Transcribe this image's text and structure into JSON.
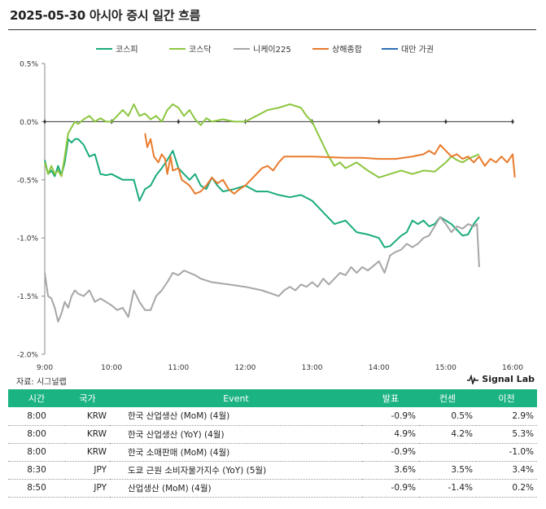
{
  "header": {
    "title": "2025-05-30 아시아 증시 일간 흐름"
  },
  "footer": {
    "source": "자료: 시그널랩",
    "brand": "Signal Lab"
  },
  "colors": {
    "kospi": "#1aab7d",
    "kosdaq": "#8cc63f",
    "nikkei": "#a6a6a6",
    "shanghai": "#e97b2c",
    "taiwan": "#2e6fb5"
  },
  "chart_data": {
    "type": "line",
    "title": "",
    "xlabel": "",
    "ylabel": "",
    "x_ticks": [
      "9:00",
      "10:00",
      "11:00",
      "12:00",
      "13:00",
      "14:00",
      "15:00",
      "16:00"
    ],
    "y_ticks": [
      "0.5%",
      "0.0%",
      "-0.5%",
      "-1.0%",
      "-1.5%",
      "-2.0%"
    ],
    "xlim": [
      "9:00",
      "16:00"
    ],
    "ylim": [
      -2.0,
      0.5
    ],
    "grid": false,
    "legend_position": "top",
    "series": [
      {
        "name": "코스피",
        "color": "#1aab7d",
        "points": [
          [
            "9:00",
            -0.33
          ],
          [
            "9:03",
            -0.45
          ],
          [
            "9:06",
            -0.42
          ],
          [
            "9:09",
            -0.47
          ],
          [
            "9:12",
            -0.38
          ],
          [
            "9:15",
            -0.46
          ],
          [
            "9:18",
            -0.35
          ],
          [
            "9:21",
            -0.15
          ],
          [
            "9:24",
            -0.18
          ],
          [
            "9:27",
            -0.15
          ],
          [
            "9:30",
            -0.15
          ],
          [
            "9:35",
            -0.2
          ],
          [
            "9:40",
            -0.3
          ],
          [
            "9:45",
            -0.28
          ],
          [
            "9:50",
            -0.45
          ],
          [
            "9:55",
            -0.46
          ],
          [
            "10:00",
            -0.45
          ],
          [
            "10:10",
            -0.5
          ],
          [
            "10:20",
            -0.5
          ],
          [
            "10:25",
            -0.68
          ],
          [
            "10:30",
            -0.58
          ],
          [
            "10:35",
            -0.55
          ],
          [
            "10:40",
            -0.46
          ],
          [
            "10:45",
            -0.4
          ],
          [
            "10:50",
            -0.33
          ],
          [
            "10:55",
            -0.25
          ],
          [
            "11:00",
            -0.4
          ],
          [
            "11:05",
            -0.45
          ],
          [
            "11:10",
            -0.5
          ],
          [
            "11:15",
            -0.45
          ],
          [
            "11:20",
            -0.55
          ],
          [
            "11:25",
            -0.58
          ],
          [
            "11:30",
            -0.48
          ],
          [
            "11:35",
            -0.55
          ],
          [
            "11:40",
            -0.6
          ],
          [
            "11:50",
            -0.58
          ],
          [
            "12:00",
            -0.55
          ],
          [
            "12:10",
            -0.6
          ],
          [
            "12:20",
            -0.6
          ],
          [
            "12:30",
            -0.63
          ],
          [
            "12:40",
            -0.65
          ],
          [
            "12:50",
            -0.63
          ],
          [
            "13:00",
            -0.68
          ],
          [
            "13:10",
            -0.78
          ],
          [
            "13:20",
            -0.88
          ],
          [
            "13:30",
            -0.85
          ],
          [
            "13:40",
            -0.95
          ],
          [
            "13:50",
            -0.97
          ],
          [
            "14:00",
            -1.0
          ],
          [
            "14:05",
            -1.08
          ],
          [
            "14:10",
            -1.07
          ],
          [
            "14:20",
            -0.98
          ],
          [
            "14:25",
            -0.95
          ],
          [
            "14:30",
            -0.85
          ],
          [
            "14:35",
            -0.88
          ],
          [
            "14:40",
            -0.85
          ],
          [
            "14:45",
            -0.9
          ],
          [
            "14:50",
            -0.88
          ],
          [
            "14:55",
            -0.82
          ],
          [
            "15:00",
            -0.85
          ],
          [
            "15:05",
            -0.88
          ],
          [
            "15:10",
            -0.93
          ],
          [
            "15:15",
            -0.98
          ],
          [
            "15:20",
            -0.97
          ],
          [
            "15:25",
            -0.88
          ],
          [
            "15:30",
            -0.82
          ]
        ]
      },
      {
        "name": "코스닥",
        "color": "#8cc63f",
        "points": [
          [
            "9:00",
            -0.35
          ],
          [
            "9:03",
            -0.45
          ],
          [
            "9:06",
            -0.38
          ],
          [
            "9:09",
            -0.45
          ],
          [
            "9:12",
            -0.42
          ],
          [
            "9:15",
            -0.47
          ],
          [
            "9:18",
            -0.3
          ],
          [
            "9:21",
            -0.1
          ],
          [
            "9:24",
            -0.05
          ],
          [
            "9:27",
            0.0
          ],
          [
            "9:30",
            -0.02
          ],
          [
            "9:35",
            0.02
          ],
          [
            "9:40",
            0.05
          ],
          [
            "9:45",
            0.0
          ],
          [
            "9:50",
            0.03
          ],
          [
            "9:55",
            0.0
          ],
          [
            "10:00",
            0.0
          ],
          [
            "10:05",
            0.05
          ],
          [
            "10:10",
            0.1
          ],
          [
            "10:15",
            0.05
          ],
          [
            "10:20",
            0.15
          ],
          [
            "10:25",
            0.05
          ],
          [
            "10:30",
            0.07
          ],
          [
            "10:35",
            0.02
          ],
          [
            "10:40",
            0.05
          ],
          [
            "10:45",
            0.0
          ],
          [
            "10:50",
            0.1
          ],
          [
            "10:55",
            0.15
          ],
          [
            "11:00",
            0.12
          ],
          [
            "11:05",
            0.05
          ],
          [
            "11:10",
            0.1
          ],
          [
            "11:15",
            0.02
          ],
          [
            "11:20",
            -0.03
          ],
          [
            "11:25",
            0.03
          ],
          [
            "11:30",
            0.0
          ],
          [
            "11:40",
            0.02
          ],
          [
            "11:50",
            0.0
          ],
          [
            "12:00",
            0.0
          ],
          [
            "12:10",
            0.05
          ],
          [
            "12:20",
            0.1
          ],
          [
            "12:30",
            0.12
          ],
          [
            "12:40",
            0.15
          ],
          [
            "12:50",
            0.12
          ],
          [
            "12:55",
            0.05
          ],
          [
            "13:00",
            0.0
          ],
          [
            "13:05",
            -0.1
          ],
          [
            "13:10",
            -0.2
          ],
          [
            "13:15",
            -0.3
          ],
          [
            "13:20",
            -0.38
          ],
          [
            "13:25",
            -0.35
          ],
          [
            "13:30",
            -0.4
          ],
          [
            "13:40",
            -0.35
          ],
          [
            "13:50",
            -0.42
          ],
          [
            "14:00",
            -0.48
          ],
          [
            "14:10",
            -0.45
          ],
          [
            "14:20",
            -0.42
          ],
          [
            "14:30",
            -0.45
          ],
          [
            "14:40",
            -0.42
          ],
          [
            "14:50",
            -0.43
          ],
          [
            "15:00",
            -0.35
          ],
          [
            "15:05",
            -0.3
          ],
          [
            "15:10",
            -0.33
          ],
          [
            "15:15",
            -0.35
          ],
          [
            "15:20",
            -0.32
          ],
          [
            "15:25",
            -0.3
          ],
          [
            "15:30",
            -0.28
          ]
        ]
      },
      {
        "name": "니케이225",
        "color": "#a6a6a6",
        "points": [
          [
            "9:00",
            -1.3
          ],
          [
            "9:03",
            -1.5
          ],
          [
            "9:06",
            -1.52
          ],
          [
            "9:09",
            -1.6
          ],
          [
            "9:12",
            -1.72
          ],
          [
            "9:15",
            -1.65
          ],
          [
            "9:18",
            -1.55
          ],
          [
            "9:21",
            -1.6
          ],
          [
            "9:24",
            -1.5
          ],
          [
            "9:27",
            -1.45
          ],
          [
            "9:30",
            -1.48
          ],
          [
            "9:35",
            -1.5
          ],
          [
            "9:40",
            -1.45
          ],
          [
            "9:45",
            -1.55
          ],
          [
            "9:50",
            -1.52
          ],
          [
            "9:55",
            -1.55
          ],
          [
            "10:00",
            -1.58
          ],
          [
            "10:05",
            -1.62
          ],
          [
            "10:10",
            -1.6
          ],
          [
            "10:15",
            -1.68
          ],
          [
            "10:20",
            -1.45
          ],
          [
            "10:25",
            -1.55
          ],
          [
            "10:30",
            -1.62
          ],
          [
            "10:35",
            -1.62
          ],
          [
            "10:40",
            -1.5
          ],
          [
            "10:45",
            -1.45
          ],
          [
            "10:50",
            -1.38
          ],
          [
            "10:55",
            -1.3
          ],
          [
            "11:00",
            -1.32
          ],
          [
            "11:05",
            -1.28
          ],
          [
            "11:10",
            -1.3
          ],
          [
            "11:15",
            -1.32
          ],
          [
            "11:20",
            -1.35
          ],
          [
            "11:30",
            -1.38
          ],
          [
            "11:45",
            -1.4
          ],
          [
            "12:00",
            -1.42
          ],
          [
            "12:15",
            -1.45
          ],
          [
            "12:30",
            -1.5
          ],
          [
            "12:35",
            -1.45
          ],
          [
            "12:40",
            -1.42
          ],
          [
            "12:45",
            -1.45
          ],
          [
            "12:50",
            -1.4
          ],
          [
            "12:55",
            -1.42
          ],
          [
            "13:00",
            -1.38
          ],
          [
            "13:05",
            -1.42
          ],
          [
            "13:10",
            -1.35
          ],
          [
            "13:15",
            -1.4
          ],
          [
            "13:20",
            -1.35
          ],
          [
            "13:25",
            -1.3
          ],
          [
            "13:30",
            -1.32
          ],
          [
            "13:35",
            -1.25
          ],
          [
            "13:40",
            -1.3
          ],
          [
            "13:45",
            -1.25
          ],
          [
            "13:50",
            -1.28
          ],
          [
            "14:00",
            -1.2
          ],
          [
            "14:05",
            -1.3
          ],
          [
            "14:10",
            -1.15
          ],
          [
            "14:15",
            -1.12
          ],
          [
            "14:20",
            -1.1
          ],
          [
            "14:25",
            -1.05
          ],
          [
            "14:30",
            -1.08
          ],
          [
            "14:35",
            -1.05
          ],
          [
            "14:40",
            -1.0
          ],
          [
            "14:45",
            -0.98
          ],
          [
            "14:50",
            -0.9
          ],
          [
            "14:55",
            -0.82
          ],
          [
            "15:00",
            -0.88
          ],
          [
            "15:05",
            -0.95
          ],
          [
            "15:10",
            -0.9
          ],
          [
            "15:15",
            -0.92
          ],
          [
            "15:20",
            -0.88
          ],
          [
            "15:25",
            -0.9
          ],
          [
            "15:28",
            -0.88
          ],
          [
            "15:30",
            -1.25
          ]
        ]
      },
      {
        "name": "상해종합",
        "color": "#e97b2c",
        "points": [
          [
            "10:30",
            -0.1
          ],
          [
            "10:32",
            -0.22
          ],
          [
            "10:35",
            -0.15
          ],
          [
            "10:38",
            -0.3
          ],
          [
            "10:42",
            -0.35
          ],
          [
            "10:45",
            -0.28
          ],
          [
            "10:48",
            -0.32
          ],
          [
            "10:50",
            -0.45
          ],
          [
            "10:53",
            -0.3
          ],
          [
            "10:55",
            -0.42
          ],
          [
            "11:00",
            -0.4
          ],
          [
            "11:03",
            -0.5
          ],
          [
            "11:06",
            -0.52
          ],
          [
            "11:10",
            -0.55
          ],
          [
            "11:15",
            -0.62
          ],
          [
            "11:20",
            -0.6
          ],
          [
            "11:25",
            -0.55
          ],
          [
            "11:30",
            -0.48
          ],
          [
            "11:35",
            -0.53
          ],
          [
            "11:40",
            -0.5
          ],
          [
            "11:45",
            -0.58
          ],
          [
            "11:50",
            -0.62
          ],
          [
            "11:55",
            -0.58
          ],
          [
            "12:00",
            -0.55
          ],
          [
            "12:05",
            -0.5
          ],
          [
            "12:10",
            -0.45
          ],
          [
            "12:15",
            -0.4
          ],
          [
            "12:20",
            -0.38
          ],
          [
            "12:25",
            -0.42
          ],
          [
            "12:30",
            -0.35
          ],
          [
            "12:35",
            -0.3
          ],
          [
            "13:00",
            -0.3
          ],
          [
            "13:30",
            -0.31
          ],
          [
            "13:45",
            -0.31
          ],
          [
            "14:00",
            -0.32
          ],
          [
            "14:15",
            -0.32
          ],
          [
            "14:30",
            -0.3
          ],
          [
            "14:40",
            -0.28
          ],
          [
            "14:45",
            -0.25
          ],
          [
            "14:50",
            -0.28
          ],
          [
            "14:55",
            -0.2
          ],
          [
            "15:00",
            -0.25
          ],
          [
            "15:05",
            -0.3
          ],
          [
            "15:10",
            -0.28
          ],
          [
            "15:15",
            -0.32
          ],
          [
            "15:20",
            -0.3
          ],
          [
            "15:25",
            -0.35
          ],
          [
            "15:30",
            -0.3
          ],
          [
            "15:35",
            -0.38
          ],
          [
            "15:40",
            -0.32
          ],
          [
            "15:45",
            -0.35
          ],
          [
            "15:50",
            -0.3
          ],
          [
            "15:55",
            -0.35
          ],
          [
            "16:00",
            -0.28
          ],
          [
            "16:02",
            -0.48
          ]
        ]
      },
      {
        "name": "대만 가권",
        "color": "#2e6fb5",
        "points": []
      }
    ]
  },
  "events_table": {
    "headers": {
      "time": "시간",
      "country": "국가",
      "event": "Event",
      "actual": "발표",
      "consensus": "컨센",
      "previous": "이전"
    },
    "rows": [
      {
        "time": "8:00",
        "country": "KRW",
        "event": "한국 산업생산 (MoM) (4월)",
        "actual": "-0.9%",
        "consensus": "0.5%",
        "previous": "2.9%"
      },
      {
        "time": "8:00",
        "country": "KRW",
        "event": "한국 산업생산 (YoY) (4월)",
        "actual": "4.9%",
        "consensus": "4.2%",
        "previous": "5.3%"
      },
      {
        "time": "8:00",
        "country": "KRW",
        "event": "한국 소매판매 (MoM) (4월)",
        "actual": "-0.9%",
        "consensus": "",
        "previous": "-1.0%"
      },
      {
        "time": "8:30",
        "country": "JPY",
        "event": "도쿄 근원 소비자물가지수 (YoY) (5월)",
        "actual": "3.6%",
        "consensus": "3.5%",
        "previous": "3.4%"
      },
      {
        "time": "8:50",
        "country": "JPY",
        "event": "산업생산 (MoM) (4월)",
        "actual": "-0.9%",
        "consensus": "-1.4%",
        "previous": "0.2%"
      }
    ]
  }
}
